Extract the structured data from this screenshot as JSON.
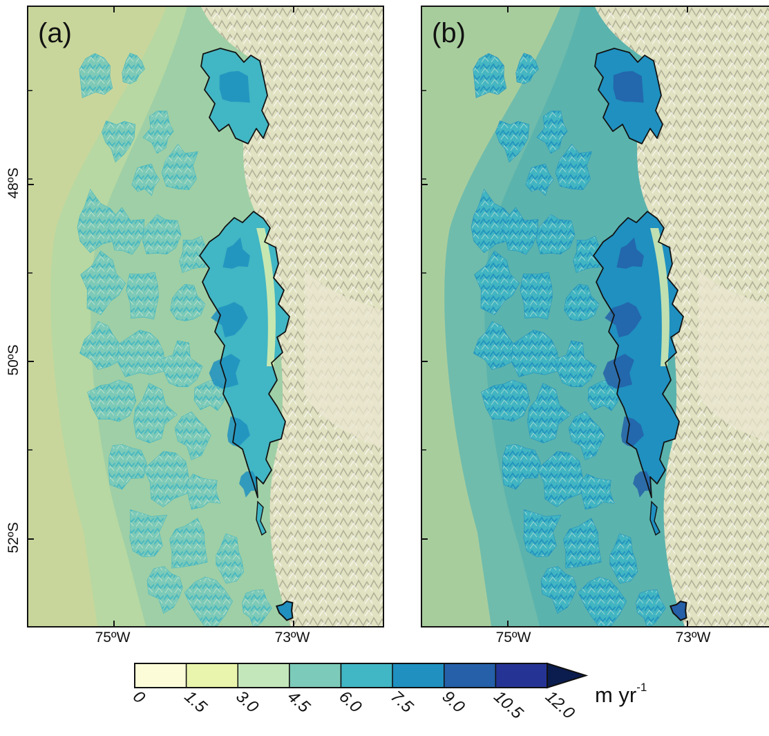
{
  "panels": [
    {
      "label": "(a)",
      "theme": "a"
    },
    {
      "label": "(b)",
      "theme": "b"
    }
  ],
  "axes": {
    "lat_labels": [
      "48ºS",
      "50ºS",
      "52ºS"
    ],
    "lon_labels": [
      "75ºW",
      "73ºW"
    ]
  },
  "colorbar": {
    "ticks": [
      "0",
      "1.5",
      "3.0",
      "4.5",
      "6.0",
      "7.5",
      "9.0",
      "10.5",
      "12.0"
    ],
    "colors": [
      "#fcfdd8",
      "#e9f4ac",
      "#c3e6bb",
      "#7ccab9",
      "#41b6c4",
      "#1f90c0",
      "#2560a8",
      "#253494"
    ],
    "extend_color": "#0b1c4e",
    "unit_main": "m yr",
    "unit_exp": "-1"
  },
  "map": {
    "ocean_color_a": "#c9d69b",
    "ocean_color_b": "#a8cd9d",
    "land_color": "#d9dcb8",
    "icefield_outline_color": "#111111"
  }
}
